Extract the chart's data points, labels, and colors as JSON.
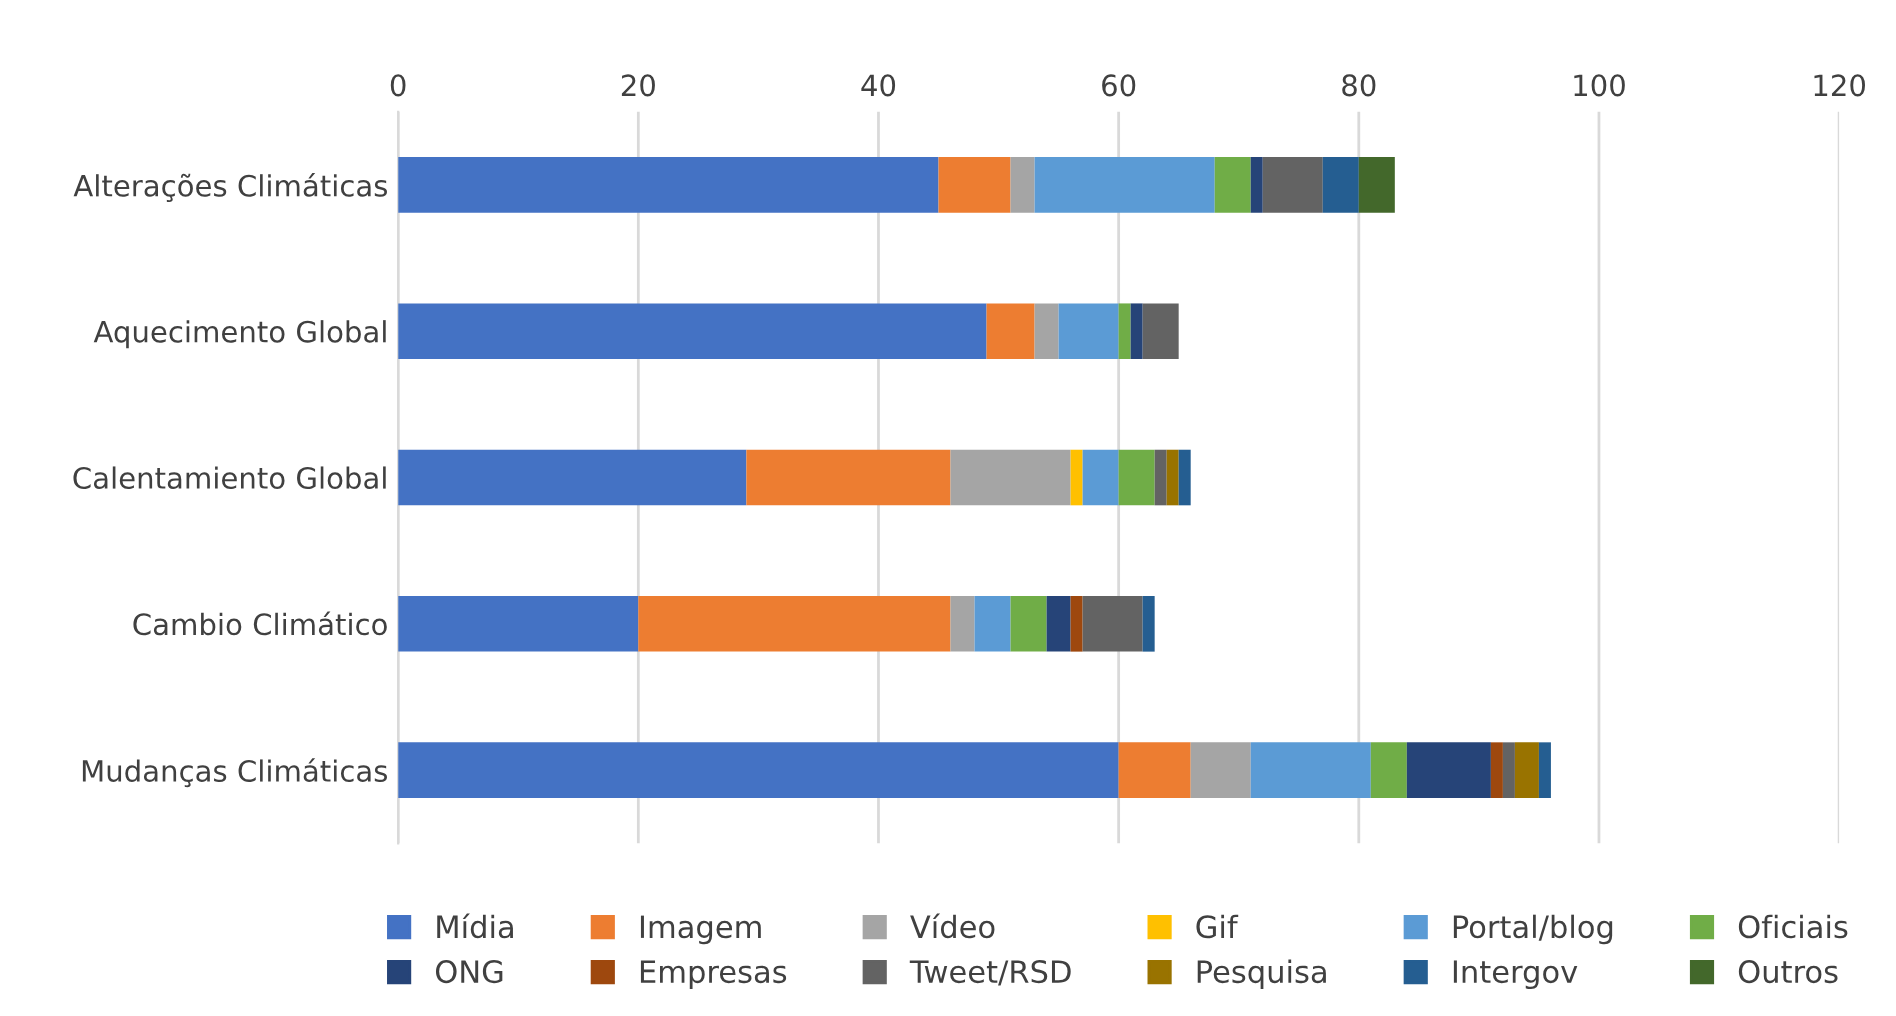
{
  "chart_data": {
    "type": "bar",
    "orientation": "horizontal",
    "stacked": true,
    "categories": [
      "Alterações Climáticas",
      "Aquecimento Global",
      "Calentamiento Global",
      "Cambio Climático",
      "Mudanças Climáticas"
    ],
    "series": [
      {
        "name": "Mídia",
        "color": "#4472c4",
        "values": [
          45,
          49,
          29,
          20,
          60
        ]
      },
      {
        "name": "Imagem",
        "color": "#ed7d31",
        "values": [
          6,
          4,
          17,
          26,
          6
        ]
      },
      {
        "name": "Vídeo",
        "color": "#a5a5a5",
        "values": [
          2,
          2,
          10,
          2,
          5
        ]
      },
      {
        "name": "Gif",
        "color": "#ffc000",
        "values": [
          0,
          0,
          1,
          0,
          0
        ]
      },
      {
        "name": "Portal/blog",
        "color": "#5b9bd5",
        "values": [
          15,
          5,
          3,
          3,
          10
        ]
      },
      {
        "name": "Oficiais",
        "color": "#70ad47",
        "values": [
          3,
          1,
          3,
          3,
          3
        ]
      },
      {
        "name": "ONG",
        "color": "#264478",
        "values": [
          1,
          1,
          0,
          2,
          7
        ]
      },
      {
        "name": "Empresas",
        "color": "#9e480e",
        "values": [
          0,
          0,
          0,
          1,
          1
        ]
      },
      {
        "name": "Tweet/RSD",
        "color": "#636363",
        "values": [
          5,
          3,
          1,
          5,
          1
        ]
      },
      {
        "name": "Pesquisa",
        "color": "#997300",
        "values": [
          0,
          0,
          1,
          0,
          2
        ]
      },
      {
        "name": "Intergov",
        "color": "#255e91",
        "values": [
          3,
          0,
          1,
          1,
          1
        ]
      },
      {
        "name": "Outros",
        "color": "#43682b",
        "values": [
          3,
          0,
          0,
          0,
          0
        ]
      }
    ],
    "xlim": [
      0,
      120
    ],
    "xticks": [
      0,
      20,
      40,
      60,
      80,
      100,
      120
    ],
    "grid": "x",
    "legend": "bottom"
  }
}
